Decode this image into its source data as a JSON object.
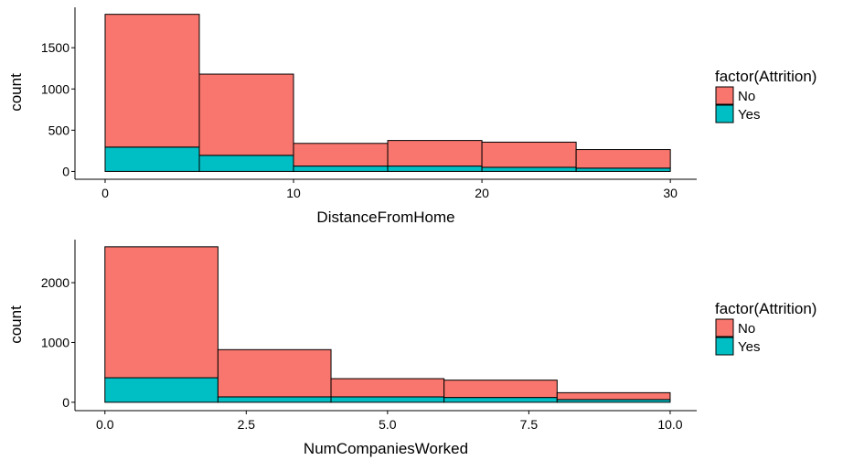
{
  "chart_data": [
    {
      "type": "bar",
      "subtype": "stacked-histogram",
      "xlabel": "DistanceFromHome",
      "ylabel": "count",
      "xlim": [
        -1.6,
        31.4
      ],
      "ylim": [
        -95,
        1990
      ],
      "xticks": [
        0,
        10,
        20,
        30
      ],
      "yticks": [
        0,
        500,
        1000,
        1500
      ],
      "legend_title": "factor(Attrition)",
      "legend_position": "right",
      "grid": false,
      "bins": [
        [
          0,
          5
        ],
        [
          5,
          10
        ],
        [
          10,
          15
        ],
        [
          15,
          20
        ],
        [
          20,
          25
        ],
        [
          25,
          30
        ]
      ],
      "series": [
        {
          "name": "No",
          "color": "#F8766D",
          "values": [
            1610,
            985,
            275,
            310,
            305,
            225
          ]
        },
        {
          "name": "Yes",
          "color": "#00BFC4",
          "values": [
            295,
            195,
            65,
            65,
            50,
            40
          ]
        }
      ]
    },
    {
      "type": "bar",
      "subtype": "stacked-histogram",
      "xlabel": "NumCompaniesWorked",
      "ylabel": "count",
      "xlim": [
        -0.53,
        10.47
      ],
      "ylim": [
        -140,
        2720
      ],
      "xticks": [
        0,
        2.5,
        5,
        7.5,
        10
      ],
      "xtick_labels": [
        "0.0",
        "2.5",
        "5.0",
        "7.5",
        "10.0"
      ],
      "yticks": [
        0,
        1000,
        2000
      ],
      "legend_title": "factor(Attrition)",
      "legend_position": "right",
      "grid": false,
      "bins": [
        [
          0,
          2
        ],
        [
          2,
          4
        ],
        [
          4,
          6
        ],
        [
          6,
          8
        ],
        [
          8,
          10
        ]
      ],
      "series": [
        {
          "name": "No",
          "color": "#F8766D",
          "values": [
            2190,
            790,
            305,
            290,
            115
          ]
        },
        {
          "name": "Yes",
          "color": "#00BFC4",
          "values": [
            410,
            90,
            90,
            80,
            45
          ]
        }
      ]
    }
  ]
}
